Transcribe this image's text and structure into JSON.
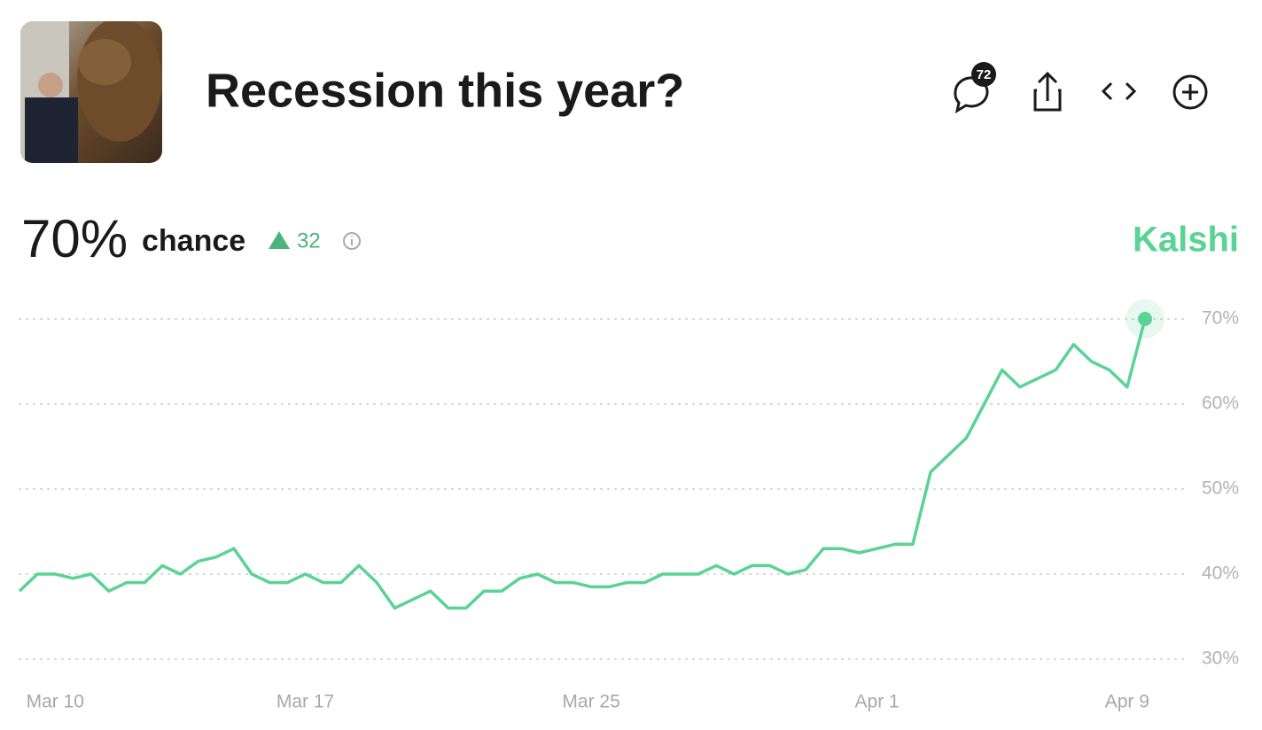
{
  "header": {
    "title": "Recession this year?",
    "comments": 72
  },
  "headline": {
    "probability": "70%",
    "label": "chance",
    "change": "32",
    "source": "Kalshi"
  },
  "chart_data": {
    "type": "line",
    "color": "#5ad394",
    "grid": true,
    "categories": [
      null,
      null,
      "Mar 10",
      null,
      null,
      null,
      null,
      null,
      null,
      null,
      null,
      null,
      null,
      null,
      null,
      null,
      "Mar 17",
      null,
      null,
      null,
      null,
      null,
      null,
      null,
      null,
      null,
      null,
      null,
      null,
      null,
      null,
      null,
      "Mar 25",
      null,
      null,
      null,
      null,
      null,
      null,
      null,
      null,
      null,
      null,
      null,
      null,
      null,
      null,
      null,
      "Apr 1",
      null,
      null,
      null,
      null,
      null,
      null,
      null,
      null,
      null,
      null,
      null,
      null,
      null,
      "Apr 9",
      null
    ],
    "values": [
      38,
      40,
      40,
      39.5,
      40,
      38,
      39,
      39,
      41,
      40,
      41.5,
      42,
      43,
      40,
      39,
      39,
      40,
      39,
      39,
      41,
      39,
      36,
      37,
      38,
      36,
      36,
      38,
      38,
      39.5,
      40,
      39,
      39,
      38.5,
      38.5,
      39,
      39,
      40,
      40,
      40,
      41,
      40,
      41,
      41,
      40,
      40.5,
      43,
      43,
      42.5,
      43,
      43.5,
      43.5,
      52,
      54,
      56,
      60,
      64,
      62,
      63,
      64,
      67,
      65,
      64,
      62,
      70
    ],
    "ylim": [
      30,
      70
    ],
    "yticks": [
      {
        "value": 30,
        "label": "30%"
      },
      {
        "value": 40,
        "label": "40%"
      },
      {
        "value": 50,
        "label": "50%"
      },
      {
        "value": 60,
        "label": "60%"
      },
      {
        "value": 70,
        "label": "70%"
      }
    ]
  }
}
